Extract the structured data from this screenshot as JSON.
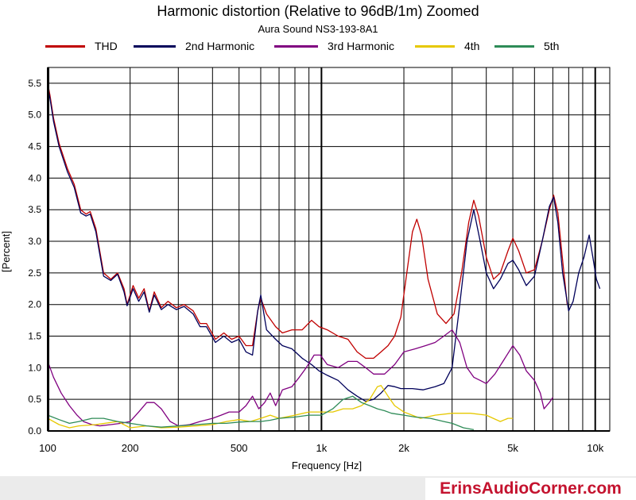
{
  "chart_data": {
    "type": "line",
    "title": "Harmonic distortion (Relative to 96dB/1m) Zoomed",
    "subtitle": "Aura Sound NS3-193-8A1",
    "xlabel": "Frequency [Hz]",
    "ylabel": "[Percent]",
    "x_scale": "log",
    "xlim": [
      100,
      11300
    ],
    "ylim": [
      0,
      5.75
    ],
    "grid": true,
    "legend_position": "top",
    "x_ticks": [
      {
        "value": 100,
        "label": "100"
      },
      {
        "value": 200,
        "label": "200"
      },
      {
        "value": 500,
        "label": "500"
      },
      {
        "value": 1000,
        "label": "1k"
      },
      {
        "value": 2000,
        "label": "2k"
      },
      {
        "value": 5000,
        "label": "5k"
      },
      {
        "value": 10000,
        "label": "10k"
      }
    ],
    "y_ticks": [
      {
        "value": 0,
        "label": "0.0"
      },
      {
        "value": 0.5,
        "label": "0.5"
      },
      {
        "value": 1,
        "label": "1.0"
      },
      {
        "value": 1.5,
        "label": "1.5"
      },
      {
        "value": 2,
        "label": "2.0"
      },
      {
        "value": 2.5,
        "label": "2.5"
      },
      {
        "value": 3,
        "label": "3.0"
      },
      {
        "value": 3.5,
        "label": "3.5"
      },
      {
        "value": 4,
        "label": "4.0"
      },
      {
        "value": 4.5,
        "label": "4.5"
      },
      {
        "value": 5,
        "label": "5.0"
      },
      {
        "value": 5.5,
        "label": "5.5"
      }
    ],
    "series": [
      {
        "name": "THD",
        "color": "#c00000",
        "points": [
          [
            100,
            5.5
          ],
          [
            102,
            5.3
          ],
          [
            105,
            4.95
          ],
          [
            110,
            4.55
          ],
          [
            118,
            4.15
          ],
          [
            125,
            3.9
          ],
          [
            132,
            3.5
          ],
          [
            138,
            3.43
          ],
          [
            143,
            3.47
          ],
          [
            150,
            3.2
          ],
          [
            160,
            2.5
          ],
          [
            170,
            2.4
          ],
          [
            180,
            2.5
          ],
          [
            190,
            2.25
          ],
          [
            195,
            2.0
          ],
          [
            205,
            2.3
          ],
          [
            215,
            2.1
          ],
          [
            225,
            2.25
          ],
          [
            235,
            1.9
          ],
          [
            245,
            2.2
          ],
          [
            260,
            1.95
          ],
          [
            275,
            2.05
          ],
          [
            295,
            1.95
          ],
          [
            315,
            2.0
          ],
          [
            340,
            1.9
          ],
          [
            360,
            1.7
          ],
          [
            380,
            1.7
          ],
          [
            410,
            1.45
          ],
          [
            440,
            1.55
          ],
          [
            470,
            1.45
          ],
          [
            500,
            1.5
          ],
          [
            530,
            1.35
          ],
          [
            560,
            1.35
          ],
          [
            585,
            1.9
          ],
          [
            600,
            2.1
          ],
          [
            630,
            1.85
          ],
          [
            680,
            1.65
          ],
          [
            720,
            1.55
          ],
          [
            780,
            1.6
          ],
          [
            850,
            1.6
          ],
          [
            920,
            1.75
          ],
          [
            980,
            1.65
          ],
          [
            1050,
            1.6
          ],
          [
            1150,
            1.5
          ],
          [
            1250,
            1.45
          ],
          [
            1350,
            1.25
          ],
          [
            1450,
            1.15
          ],
          [
            1550,
            1.15
          ],
          [
            1650,
            1.25
          ],
          [
            1750,
            1.35
          ],
          [
            1850,
            1.5
          ],
          [
            1950,
            1.8
          ],
          [
            2050,
            2.5
          ],
          [
            2150,
            3.15
          ],
          [
            2230,
            3.35
          ],
          [
            2320,
            3.1
          ],
          [
            2450,
            2.4
          ],
          [
            2650,
            1.85
          ],
          [
            2850,
            1.7
          ],
          [
            3050,
            1.85
          ],
          [
            3250,
            2.5
          ],
          [
            3450,
            3.3
          ],
          [
            3600,
            3.65
          ],
          [
            3750,
            3.4
          ],
          [
            4000,
            2.75
          ],
          [
            4250,
            2.4
          ],
          [
            4500,
            2.5
          ],
          [
            4800,
            2.85
          ],
          [
            5000,
            3.05
          ],
          [
            5250,
            2.85
          ],
          [
            5600,
            2.5
          ],
          [
            6000,
            2.55
          ],
          [
            6400,
            3.0
          ],
          [
            6800,
            3.5
          ],
          [
            7050,
            3.73
          ],
          [
            7300,
            3.45
          ],
          [
            7600,
            2.7
          ],
          [
            7900,
            2.0
          ]
        ]
      },
      {
        "name": "2nd Harmonic",
        "color": "#00005a",
        "points": [
          [
            100,
            5.45
          ],
          [
            102,
            5.25
          ],
          [
            105,
            4.9
          ],
          [
            110,
            4.5
          ],
          [
            118,
            4.1
          ],
          [
            125,
            3.85
          ],
          [
            132,
            3.45
          ],
          [
            138,
            3.4
          ],
          [
            143,
            3.43
          ],
          [
            150,
            3.15
          ],
          [
            160,
            2.45
          ],
          [
            170,
            2.38
          ],
          [
            180,
            2.48
          ],
          [
            190,
            2.2
          ],
          [
            195,
            1.98
          ],
          [
            205,
            2.25
          ],
          [
            215,
            2.05
          ],
          [
            225,
            2.2
          ],
          [
            235,
            1.88
          ],
          [
            245,
            2.15
          ],
          [
            260,
            1.92
          ],
          [
            275,
            2.0
          ],
          [
            295,
            1.92
          ],
          [
            315,
            1.97
          ],
          [
            340,
            1.85
          ],
          [
            360,
            1.65
          ],
          [
            380,
            1.65
          ],
          [
            410,
            1.4
          ],
          [
            440,
            1.5
          ],
          [
            470,
            1.4
          ],
          [
            500,
            1.45
          ],
          [
            530,
            1.25
          ],
          [
            560,
            1.2
          ],
          [
            585,
            1.9
          ],
          [
            600,
            2.15
          ],
          [
            630,
            1.6
          ],
          [
            680,
            1.45
          ],
          [
            720,
            1.35
          ],
          [
            780,
            1.3
          ],
          [
            850,
            1.15
          ],
          [
            920,
            1.05
          ],
          [
            980,
            0.95
          ],
          [
            1050,
            0.88
          ],
          [
            1150,
            0.8
          ],
          [
            1250,
            0.65
          ],
          [
            1350,
            0.55
          ],
          [
            1450,
            0.47
          ],
          [
            1550,
            0.5
          ],
          [
            1650,
            0.6
          ],
          [
            1750,
            0.72
          ],
          [
            1850,
            0.7
          ],
          [
            1950,
            0.67
          ],
          [
            2150,
            0.67
          ],
          [
            2350,
            0.65
          ],
          [
            2600,
            0.7
          ],
          [
            2800,
            0.75
          ],
          [
            3000,
            1.0
          ],
          [
            3200,
            2.0
          ],
          [
            3400,
            3.0
          ],
          [
            3600,
            3.5
          ],
          [
            3800,
            3.0
          ],
          [
            4000,
            2.5
          ],
          [
            4250,
            2.25
          ],
          [
            4500,
            2.4
          ],
          [
            4800,
            2.65
          ],
          [
            5000,
            2.7
          ],
          [
            5250,
            2.55
          ],
          [
            5600,
            2.3
          ],
          [
            6000,
            2.45
          ],
          [
            6400,
            3.0
          ],
          [
            6800,
            3.55
          ],
          [
            7050,
            3.7
          ],
          [
            7300,
            3.3
          ],
          [
            7600,
            2.5
          ],
          [
            8000,
            1.9
          ],
          [
            8300,
            2.05
          ],
          [
            8700,
            2.5
          ],
          [
            9100,
            2.75
          ],
          [
            9500,
            3.1
          ],
          [
            9800,
            2.75
          ],
          [
            10100,
            2.4
          ],
          [
            10400,
            2.25
          ]
        ]
      },
      {
        "name": "3rd Harmonic",
        "color": "#800080",
        "points": [
          [
            100,
            1.1
          ],
          [
            105,
            0.85
          ],
          [
            112,
            0.6
          ],
          [
            120,
            0.4
          ],
          [
            128,
            0.25
          ],
          [
            135,
            0.15
          ],
          [
            145,
            0.1
          ],
          [
            155,
            0.08
          ],
          [
            170,
            0.1
          ],
          [
            185,
            0.12
          ],
          [
            200,
            0.15
          ],
          [
            215,
            0.3
          ],
          [
            230,
            0.45
          ],
          [
            245,
            0.45
          ],
          [
            260,
            0.35
          ],
          [
            280,
            0.15
          ],
          [
            300,
            0.08
          ],
          [
            330,
            0.1
          ],
          [
            360,
            0.15
          ],
          [
            400,
            0.2
          ],
          [
            430,
            0.25
          ],
          [
            460,
            0.3
          ],
          [
            500,
            0.3
          ],
          [
            530,
            0.4
          ],
          [
            560,
            0.55
          ],
          [
            590,
            0.35
          ],
          [
            620,
            0.45
          ],
          [
            650,
            0.6
          ],
          [
            680,
            0.4
          ],
          [
            720,
            0.65
          ],
          [
            780,
            0.7
          ],
          [
            830,
            0.85
          ],
          [
            880,
            1.0
          ],
          [
            940,
            1.2
          ],
          [
            990,
            1.2
          ],
          [
            1050,
            1.05
          ],
          [
            1150,
            1.0
          ],
          [
            1250,
            1.1
          ],
          [
            1350,
            1.1
          ],
          [
            1450,
            1.0
          ],
          [
            1550,
            0.9
          ],
          [
            1700,
            0.9
          ],
          [
            1850,
            1.05
          ],
          [
            2000,
            1.25
          ],
          [
            2200,
            1.3
          ],
          [
            2400,
            1.35
          ],
          [
            2600,
            1.4
          ],
          [
            2800,
            1.5
          ],
          [
            3000,
            1.6
          ],
          [
            3200,
            1.4
          ],
          [
            3400,
            1.0
          ],
          [
            3600,
            0.85
          ],
          [
            3800,
            0.8
          ],
          [
            4000,
            0.75
          ],
          [
            4300,
            0.9
          ],
          [
            4600,
            1.1
          ],
          [
            5000,
            1.35
          ],
          [
            5300,
            1.2
          ],
          [
            5600,
            0.95
          ],
          [
            6000,
            0.8
          ],
          [
            6300,
            0.6
          ],
          [
            6500,
            0.35
          ],
          [
            6800,
            0.45
          ],
          [
            7000,
            0.53
          ]
        ]
      },
      {
        "name": "4th",
        "color": "#e6c800",
        "points": [
          [
            100,
            0.2
          ],
          [
            110,
            0.1
          ],
          [
            120,
            0.05
          ],
          [
            130,
            0.08
          ],
          [
            150,
            0.1
          ],
          [
            180,
            0.15
          ],
          [
            200,
            0.05
          ],
          [
            230,
            0.08
          ],
          [
            260,
            0.05
          ],
          [
            300,
            0.06
          ],
          [
            350,
            0.08
          ],
          [
            400,
            0.1
          ],
          [
            450,
            0.15
          ],
          [
            500,
            0.18
          ],
          [
            550,
            0.15
          ],
          [
            600,
            0.2
          ],
          [
            650,
            0.25
          ],
          [
            700,
            0.2
          ],
          [
            800,
            0.25
          ],
          [
            900,
            0.3
          ],
          [
            1000,
            0.3
          ],
          [
            1100,
            0.3
          ],
          [
            1200,
            0.35
          ],
          [
            1300,
            0.35
          ],
          [
            1400,
            0.4
          ],
          [
            1500,
            0.5
          ],
          [
            1600,
            0.7
          ],
          [
            1650,
            0.72
          ],
          [
            1750,
            0.55
          ],
          [
            1850,
            0.4
          ],
          [
            2000,
            0.3
          ],
          [
            2300,
            0.2
          ],
          [
            2600,
            0.25
          ],
          [
            3000,
            0.28
          ],
          [
            3500,
            0.28
          ],
          [
            4000,
            0.25
          ],
          [
            4500,
            0.15
          ],
          [
            4800,
            0.2
          ],
          [
            5000,
            0.2
          ]
        ]
      },
      {
        "name": "5th",
        "color": "#2e8b57",
        "points": [
          [
            100,
            0.25
          ],
          [
            110,
            0.18
          ],
          [
            120,
            0.12
          ],
          [
            130,
            0.15
          ],
          [
            145,
            0.2
          ],
          [
            160,
            0.2
          ],
          [
            180,
            0.15
          ],
          [
            200,
            0.12
          ],
          [
            230,
            0.08
          ],
          [
            260,
            0.06
          ],
          [
            300,
            0.08
          ],
          [
            350,
            0.1
          ],
          [
            400,
            0.12
          ],
          [
            450,
            0.12
          ],
          [
            500,
            0.14
          ],
          [
            550,
            0.15
          ],
          [
            600,
            0.15
          ],
          [
            650,
            0.17
          ],
          [
            700,
            0.2
          ],
          [
            800,
            0.22
          ],
          [
            900,
            0.25
          ],
          [
            1000,
            0.25
          ],
          [
            1100,
            0.35
          ],
          [
            1200,
            0.5
          ],
          [
            1300,
            0.55
          ],
          [
            1400,
            0.45
          ],
          [
            1500,
            0.4
          ],
          [
            1600,
            0.35
          ],
          [
            1700,
            0.32
          ],
          [
            1800,
            0.28
          ],
          [
            2000,
            0.25
          ],
          [
            2200,
            0.22
          ],
          [
            2500,
            0.2
          ],
          [
            2800,
            0.15
          ],
          [
            3000,
            0.12
          ],
          [
            3300,
            0.05
          ],
          [
            3600,
            0.02
          ]
        ]
      }
    ]
  },
  "watermark": "ErinsAudioCorner.com"
}
